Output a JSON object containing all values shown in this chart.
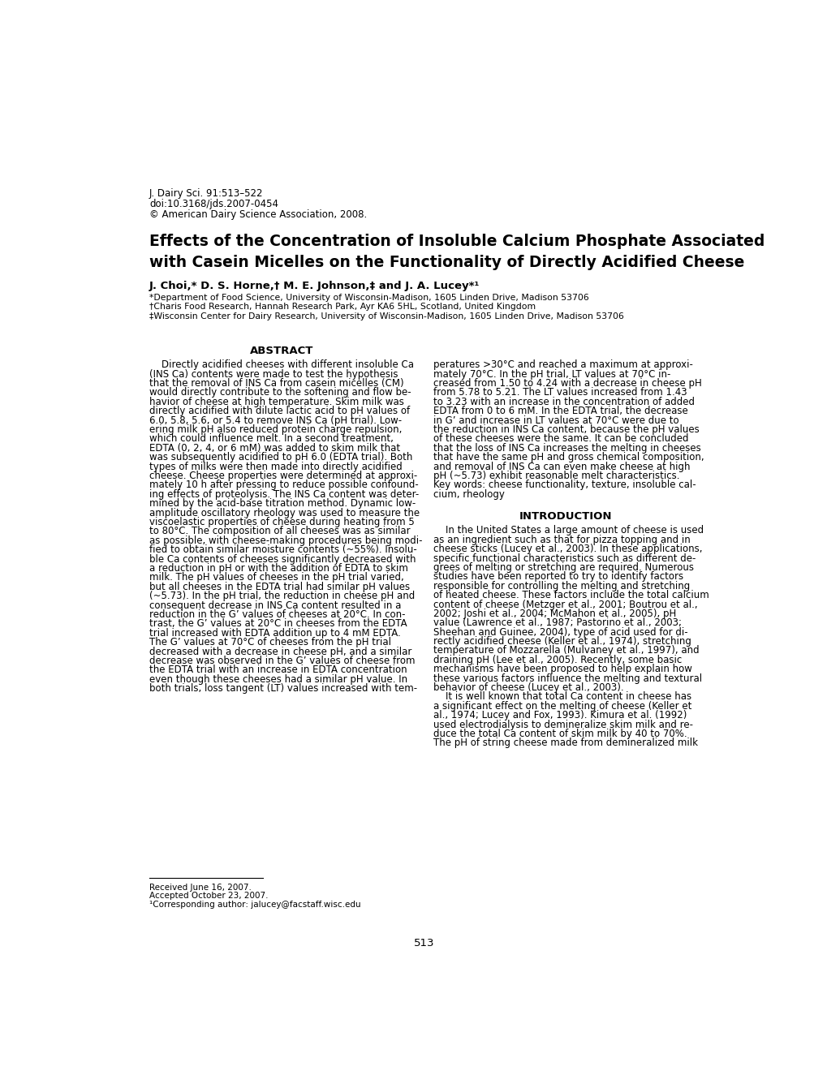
{
  "background_color": "#ffffff",
  "journal_info_lines": [
    "J. Dairy Sci. 91:513–522",
    "doi:10.3168/jds.2007-0454",
    "© American Dairy Science Association, 2008."
  ],
  "title_line1": "Effects of the Concentration of Insoluble Calcium Phosphate Associated",
  "title_line2": "with Casein Micelles on the Functionality of Directly Acidified Cheese",
  "authors": "J. Choi,* D. S. Horne,† M. E. Johnson,‡ and J. A. Lucey*¹",
  "affiliations": [
    "*Department of Food Science, University of Wisconsin-Madison, 1605 Linden Drive, Madison 53706",
    "†Charis Food Research, Hannah Research Park, Ayr KA6 5HL, Scotland, United Kingdom",
    "‡Wisconsin Center for Dairy Research, University of Wisconsin-Madison, 1605 Linden Drive, Madison 53706"
  ],
  "abstract_title": "ABSTRACT",
  "abstract_col1": [
    "    Directly acidified cheeses with different insoluble Ca",
    "(INS Ca) contents were made to test the hypothesis",
    "that the removal of INS Ca from casein micelles (CM)",
    "would directly contribute to the softening and flow be-",
    "havior of cheese at high temperature. Skim milk was",
    "directly acidified with dilute lactic acid to pH values of",
    "6.0, 5.8, 5.6, or 5.4 to remove INS Ca (pH trial). Low-",
    "ering milk pH also reduced protein charge repulsion,",
    "which could influence melt. In a second treatment,",
    "EDTA (0, 2, 4, or 6 mM) was added to skim milk that",
    "was subsequently acidified to pH 6.0 (EDTA trial). Both",
    "types of milks were then made into directly acidified",
    "cheese. Cheese properties were determined at approxi-",
    "mately 10 h after pressing to reduce possible confound-",
    "ing effects of proteolysis. The INS Ca content was deter-",
    "mined by the acid-base titration method. Dynamic low-",
    "amplitude oscillatory rheology was used to measure the",
    "viscoelastic properties of cheese during heating from 5",
    "to 80°C. The composition of all cheeses was as similar",
    "as possible, with cheese-making procedures being modi-",
    "fied to obtain similar moisture contents (~55%). Insolu-",
    "ble Ca contents of cheeses significantly decreased with",
    "a reduction in pH or with the addition of EDTA to skim",
    "milk. The pH values of cheeses in the pH trial varied,",
    "but all cheeses in the EDTA trial had similar pH values",
    "(~5.73). In the pH trial, the reduction in cheese pH and",
    "consequent decrease in INS Ca content resulted in a",
    "reduction in the G’ values of cheeses at 20°C. In con-",
    "trast, the G’ values at 20°C in cheeses from the EDTA",
    "trial increased with EDTA addition up to 4 mM EDTA.",
    "The G’ values at 70°C of cheeses from the pH trial",
    "decreased with a decrease in cheese pH, and a similar",
    "decrease was observed in the G’ values of cheese from",
    "the EDTA trial with an increase in EDTA concentration",
    "even though these cheeses had a similar pH value. In",
    "both trials, loss tangent (LT) values increased with tem-"
  ],
  "abstract_col2": [
    "peratures >30°C and reached a maximum at approxi-",
    "mately 70°C. In the pH trial, LT values at 70°C in-",
    "creased from 1.50 to 4.24 with a decrease in cheese pH",
    "from 5.78 to 5.21. The LT values increased from 1.43",
    "to 3.23 with an increase in the concentration of added",
    "EDTA from 0 to 6 mM. In the EDTA trial, the decrease",
    "in G’ and increase in LT values at 70°C were due to",
    "the reduction in INS Ca content, because the pH values",
    "of these cheeses were the same. It can be concluded",
    "that the loss of INS Ca increases the melting in cheeses",
    "that have the same pH and gross chemical composition,",
    "and removal of INS Ca can even make cheese at high",
    "pH (~5.73) exhibit reasonable melt characteristics.",
    "Key words: cheese functionality, texture, insoluble cal-",
    "cium, rheology"
  ],
  "intro_title": "INTRODUCTION",
  "intro_col2": [
    "    In the United States a large amount of cheese is used",
    "as an ingredient such as that for pizza topping and in",
    "cheese sticks (Lucey et al., 2003). In these applications,",
    "specific functional characteristics such as different de-",
    "grees of melting or stretching are required. Numerous",
    "studies have been reported to try to identify factors",
    "responsible for controlling the melting and stretching",
    "of heated cheese. These factors include the total calcium",
    "content of cheese (Metzger et al., 2001; Boutrou et al.,",
    "2002; Joshi et al., 2004; McMahon et al., 2005), pH",
    "value (Lawrence et al., 1987; Pastorino et al., 2003;",
    "Sheehan and Guinee, 2004), type of acid used for di-",
    "rectly acidified cheese (Keller et al., 1974), stretching",
    "temperature of Mozzarella (Mulvaney et al., 1997), and",
    "draining pH (Lee et al., 2005). Recently, some basic",
    "mechanisms have been proposed to help explain how",
    "these various factors influence the melting and textural",
    "behavior of cheese (Lucey et al., 2003).",
    "    It is well known that total Ca content in cheese has",
    "a significant effect on the melting of cheese (Keller et",
    "al., 1974; Lucey and Fox, 1993). Kimura et al. (1992)",
    "used electrodialysis to demineralize skim milk and re-",
    "duce the total Ca content of skim milk by 40 to 70%.",
    "The pH of string cheese made from demineralized milk"
  ],
  "footnote_lines": [
    "Received June 16, 2007.",
    "Accepted October 23, 2007.",
    "¹Corresponding author: jalucey@facstaff.wisc.edu"
  ],
  "page_number": "513"
}
